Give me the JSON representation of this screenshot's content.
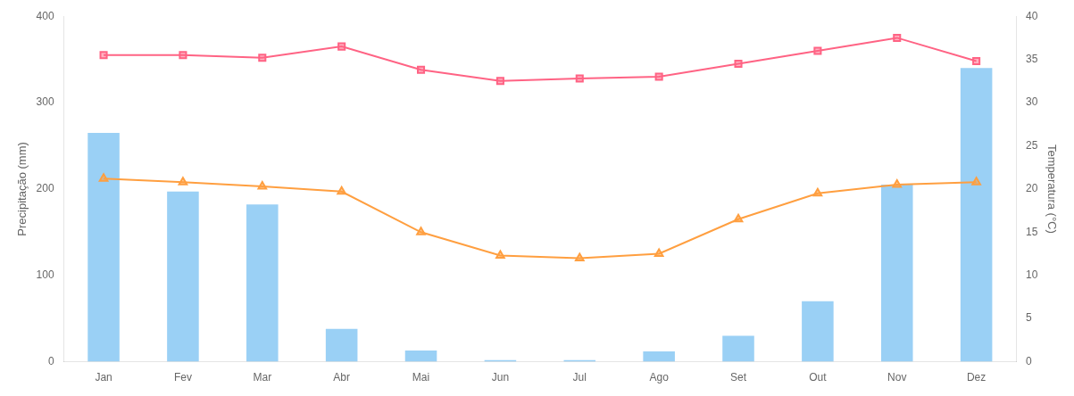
{
  "chart_data": {
    "type": "bar",
    "categories": [
      "Jan",
      "Fev",
      "Mar",
      "Abr",
      "Mai",
      "Jun",
      "Jul",
      "Ago",
      "Set",
      "Out",
      "Nov",
      "Dez"
    ],
    "series": [
      {
        "type": "bar",
        "values": [
          265,
          197,
          182,
          38,
          13,
          2,
          2,
          12,
          30,
          70,
          205,
          340
        ]
      },
      {
        "type": "line",
        "axis": "y2",
        "marker": "square",
        "values": [
          35.5,
          35.5,
          35.2,
          36.5,
          33.8,
          32.5,
          32.8,
          33.0,
          34.5,
          36.0,
          37.5,
          34.8
        ]
      },
      {
        "type": "line",
        "axis": "y2",
        "marker": "triangle",
        "values": [
          21.2,
          20.8,
          20.3,
          19.7,
          15.0,
          12.3,
          12.0,
          12.5,
          16.5,
          19.5,
          20.5,
          20.8
        ]
      }
    ],
    "ylabel": "Precipitação (mm)",
    "y2label": "Temperatura (°C)",
    "ylim": [
      0,
      400
    ],
    "yticks": [
      0,
      100,
      200,
      300,
      400
    ],
    "y2lim": [
      0,
      40
    ],
    "y2ticks": [
      0,
      5,
      10,
      15,
      20,
      25,
      30,
      35,
      40
    ],
    "grid": false
  }
}
